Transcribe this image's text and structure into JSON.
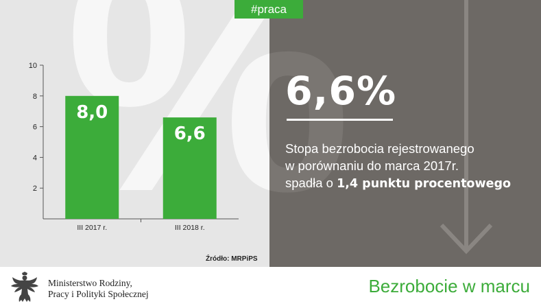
{
  "hashtag": "#praca",
  "headline_value": "6,6%",
  "description": {
    "line1": "Stopa bezrobocia rejestrowanego",
    "line2": "w porównaniu do marca 2017r.",
    "line3_prefix": "spadła o ",
    "line3_bold": "1,4 punktu procentowego"
  },
  "source": "Źródło: MRPiPS",
  "ministry": {
    "line1": "Ministerstwo Rodziny,",
    "line2": "Pracy i Polityki Społecznej"
  },
  "footer_title": "Bezrobocie w marcu",
  "background_glyph": "%",
  "colors": {
    "accent_green": "#3cac3a",
    "dark_panel": "#6d6965",
    "light_panel": "#e6e6e6"
  },
  "icons": [
    "down-arrow-icon",
    "eagle-emblem-icon"
  ],
  "chart_data": {
    "type": "bar",
    "categories": [
      "III 2017 r.",
      "III 2018 r."
    ],
    "values": [
      8.0,
      6.6
    ],
    "data_labels": [
      "8,0",
      "6,6"
    ],
    "ylim": [
      0,
      10
    ],
    "yticks": [
      2,
      4,
      6,
      8,
      10
    ],
    "color": "#3cac3a",
    "grid": false
  }
}
